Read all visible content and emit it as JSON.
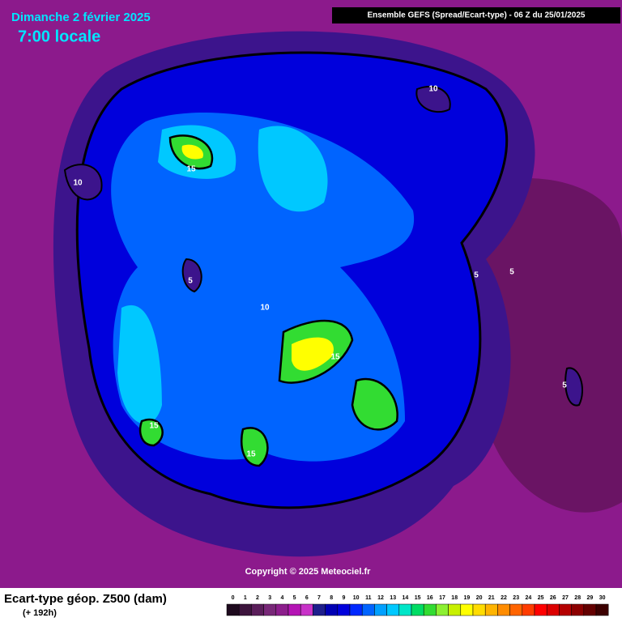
{
  "header": {
    "date": "Dimanche 2 février 2025",
    "time": "7:00 locale",
    "source": "Ensemble GEFS  (Spread/Ecart-type) - 06 Z du 25/01/2025"
  },
  "map": {
    "contour_labels": [
      10,
      15,
      10,
      5,
      10,
      15,
      5,
      5,
      15,
      15,
      5
    ]
  },
  "copyright": "Copyright © 2025 Meteociel.fr",
  "legend": {
    "title": "Ecart-type géop. Z500 (dam)",
    "subtitle": "(+ 192h)",
    "ticks": [
      0,
      1,
      2,
      3,
      4,
      5,
      6,
      7,
      8,
      9,
      10,
      11,
      12,
      13,
      14,
      15,
      16,
      17,
      18,
      19,
      20,
      21,
      22,
      23,
      24,
      25,
      26,
      27,
      28,
      29,
      30
    ],
    "colors": [
      "#1e0a1e",
      "#3c143c",
      "#5a1e5a",
      "#782878",
      "#8c1e8c",
      "#b414b4",
      "#c832c8",
      "#1e1e8c",
      "#0000b4",
      "#0000dc",
      "#0028ff",
      "#0064ff",
      "#00a0ff",
      "#00c8ff",
      "#00e6c8",
      "#00dc64",
      "#32dc32",
      "#8cf032",
      "#c8f000",
      "#ffff00",
      "#ffdc00",
      "#ffb400",
      "#ff8c00",
      "#ff6400",
      "#ff3c00",
      "#ff0000",
      "#dc0000",
      "#b40000",
      "#8c0000",
      "#640000",
      "#3c0000"
    ]
  }
}
